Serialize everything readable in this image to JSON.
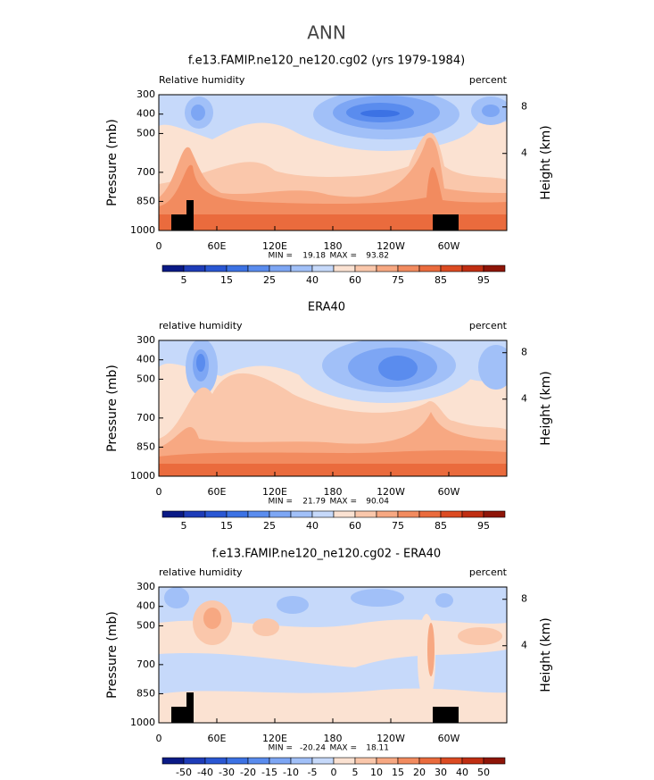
{
  "figure_title": "ANN",
  "chart_data": [
    {
      "type": "contour",
      "title": "f.e13.FAMIP.ne120_ne120.cg02 (yrs 1979-1984)",
      "left_label": "Relative humidity",
      "right_label": "percent",
      "ylabel": "Pressure (mb)",
      "y2label": "Height (km)",
      "xlim": [
        0,
        360
      ],
      "xticks": [
        0,
        {
          "value": 60,
          "label": "60E"
        },
        {
          "value": 120,
          "label": "120E"
        },
        180,
        {
          "value": 240,
          "label": "120W"
        },
        {
          "value": 300,
          "label": "60W"
        }
      ],
      "ylim": [
        1000,
        300
      ],
      "yticks": [
        300,
        400,
        500,
        700,
        850,
        1000
      ],
      "y2ticks": [
        4,
        8
      ],
      "min_label": "MIN =",
      "min": 19.18,
      "max_label": "MAX =",
      "max": 93.82,
      "colorbar": {
        "ticks": [
          5,
          15,
          25,
          40,
          60,
          75,
          85,
          95
        ],
        "colors": [
          "#0a1a86",
          "#1e3cb8",
          "#2a57d3",
          "#3c72e4",
          "#5a8cee",
          "#7da6f4",
          "#a1c0f8",
          "#c6d9fa",
          "#fbe2d2",
          "#fac7ab",
          "#f7a882",
          "#f28b5f",
          "#ea6b3d",
          "#dc4b22",
          "#c02e12",
          "#8e1508"
        ]
      }
    },
    {
      "type": "contour",
      "title": "ERA40",
      "left_label": "relative humidity",
      "right_label": "percent",
      "ylabel": "Pressure (mb)",
      "y2label": "Height (km)",
      "xlim": [
        0,
        360
      ],
      "xticks": [
        0,
        {
          "value": 60,
          "label": "60E"
        },
        {
          "value": 120,
          "label": "120E"
        },
        180,
        {
          "value": 240,
          "label": "120W"
        },
        {
          "value": 300,
          "label": "60W"
        }
      ],
      "ylim": [
        1000,
        300
      ],
      "yticks": [
        300,
        400,
        500,
        700,
        850,
        1000
      ],
      "y2ticks": [
        4,
        8
      ],
      "min_label": "MIN =",
      "min": 21.79,
      "max_label": "MAX =",
      "max": 90.04,
      "colorbar": {
        "ticks": [
          5,
          15,
          25,
          40,
          60,
          75,
          85,
          95
        ],
        "colors": [
          "#0a1a86",
          "#1e3cb8",
          "#2a57d3",
          "#3c72e4",
          "#5a8cee",
          "#7da6f4",
          "#a1c0f8",
          "#c6d9fa",
          "#fbe2d2",
          "#fac7ab",
          "#f7a882",
          "#f28b5f",
          "#ea6b3d",
          "#dc4b22",
          "#c02e12",
          "#8e1508"
        ]
      }
    },
    {
      "type": "contour",
      "title": "f.e13.FAMIP.ne120_ne120.cg02 - ERA40",
      "left_label": "relative humidity",
      "right_label": "percent",
      "ylabel": "Pressure (mb)",
      "y2label": "Height (km)",
      "xlim": [
        0,
        360
      ],
      "xticks": [
        0,
        {
          "value": 60,
          "label": "60E"
        },
        {
          "value": 120,
          "label": "120E"
        },
        180,
        {
          "value": 240,
          "label": "120W"
        },
        {
          "value": 300,
          "label": "60W"
        }
      ],
      "ylim": [
        1000,
        300
      ],
      "yticks": [
        300,
        400,
        500,
        700,
        850,
        1000
      ],
      "y2ticks": [
        4,
        8
      ],
      "min_label": "MIN =",
      "min": -20.24,
      "max_label": "MAX =",
      "max": 18.11,
      "colorbar": {
        "ticks": [
          -50,
          -40,
          -30,
          -20,
          -15,
          -10,
          -5,
          0,
          5,
          10,
          15,
          20,
          30,
          40,
          50
        ],
        "colors": [
          "#0a1a86",
          "#1e3cb8",
          "#2a57d3",
          "#3c72e4",
          "#5a8cee",
          "#7da6f4",
          "#a1c0f8",
          "#c6d9fa",
          "#fbe2d2",
          "#fac7ab",
          "#f7a882",
          "#f28b5f",
          "#ea6b3d",
          "#dc4b22",
          "#c02e12",
          "#8e1508"
        ]
      }
    }
  ]
}
